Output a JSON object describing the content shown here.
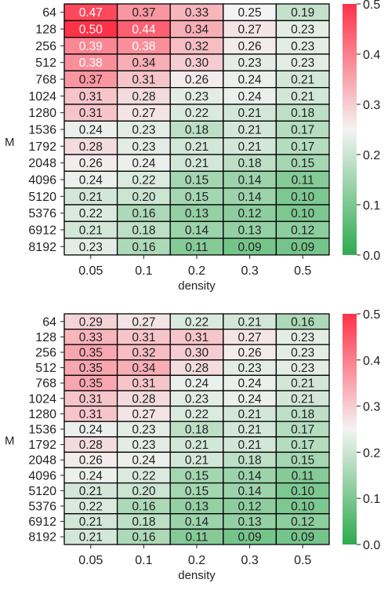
{
  "chart_data": [
    {
      "type": "heatmap",
      "title": "",
      "xlabel": "density",
      "ylabel": "M",
      "x_categories": [
        "0.05",
        "0.1",
        "0.2",
        "0.3",
        "0.5"
      ],
      "y_categories": [
        "64",
        "128",
        "256",
        "512",
        "768",
        "1024",
        "1280",
        "1536",
        "1792",
        "2048",
        "4096",
        "5120",
        "5376",
        "6912",
        "8192"
      ],
      "values": [
        [
          0.47,
          0.37,
          0.33,
          0.25,
          0.19
        ],
        [
          0.5,
          0.44,
          0.34,
          0.27,
          0.23
        ],
        [
          0.39,
          0.38,
          0.32,
          0.26,
          0.23
        ],
        [
          0.38,
          0.34,
          0.3,
          0.23,
          0.23
        ],
        [
          0.37,
          0.31,
          0.26,
          0.24,
          0.21
        ],
        [
          0.31,
          0.28,
          0.23,
          0.24,
          0.21
        ],
        [
          0.31,
          0.27,
          0.22,
          0.21,
          0.18
        ],
        [
          0.24,
          0.23,
          0.18,
          0.21,
          0.17
        ],
        [
          0.28,
          0.23,
          0.21,
          0.21,
          0.17
        ],
        [
          0.26,
          0.24,
          0.21,
          0.18,
          0.15
        ],
        [
          0.24,
          0.22,
          0.15,
          0.14,
          0.11
        ],
        [
          0.21,
          0.2,
          0.15,
          0.14,
          0.1
        ],
        [
          0.22,
          0.16,
          0.13,
          0.12,
          0.1
        ],
        [
          0.21,
          0.18,
          0.14,
          0.13,
          0.12
        ],
        [
          0.23,
          0.16,
          0.11,
          0.09,
          0.09
        ]
      ],
      "colorbar": {
        "min": 0.0,
        "max": 0.5,
        "ticks": [
          "0.0",
          "0.1",
          "0.2",
          "0.3",
          "0.4",
          "0.5"
        ]
      },
      "colormap": {
        "low": "#2eaa4f",
        "mid": "#f3f3f3",
        "high": "#ff3248"
      },
      "cell_border_color": "#000000"
    },
    {
      "type": "heatmap",
      "title": "",
      "xlabel": "density",
      "ylabel": "M",
      "x_categories": [
        "0.05",
        "0.1",
        "0.2",
        "0.3",
        "0.5"
      ],
      "y_categories": [
        "64",
        "128",
        "256",
        "512",
        "768",
        "1024",
        "1280",
        "1536",
        "1792",
        "2048",
        "4096",
        "5120",
        "5376",
        "6912",
        "8192"
      ],
      "values": [
        [
          0.29,
          0.27,
          0.22,
          0.21,
          0.16
        ],
        [
          0.33,
          0.31,
          0.31,
          0.27,
          0.23
        ],
        [
          0.35,
          0.32,
          0.3,
          0.26,
          0.23
        ],
        [
          0.35,
          0.34,
          0.28,
          0.23,
          0.23
        ],
        [
          0.35,
          0.31,
          0.24,
          0.24,
          0.21
        ],
        [
          0.31,
          0.28,
          0.23,
          0.24,
          0.21
        ],
        [
          0.31,
          0.27,
          0.22,
          0.21,
          0.18
        ],
        [
          0.24,
          0.23,
          0.18,
          0.21,
          0.17
        ],
        [
          0.28,
          0.23,
          0.21,
          0.21,
          0.17
        ],
        [
          0.26,
          0.24,
          0.21,
          0.18,
          0.15
        ],
        [
          0.24,
          0.22,
          0.15,
          0.14,
          0.11
        ],
        [
          0.21,
          0.2,
          0.15,
          0.14,
          0.1
        ],
        [
          0.22,
          0.16,
          0.13,
          0.12,
          0.1
        ],
        [
          0.21,
          0.18,
          0.14,
          0.13,
          0.12
        ],
        [
          0.21,
          0.16,
          0.11,
          0.09,
          0.09
        ]
      ],
      "colorbar": {
        "min": 0.0,
        "max": 0.5,
        "ticks": [
          "0.0",
          "0.1",
          "0.2",
          "0.3",
          "0.4",
          "0.5"
        ]
      },
      "colormap": {
        "low": "#2eaa4f",
        "mid": "#f3f3f3",
        "high": "#ff3248"
      },
      "cell_border_color": "#000000"
    }
  ]
}
